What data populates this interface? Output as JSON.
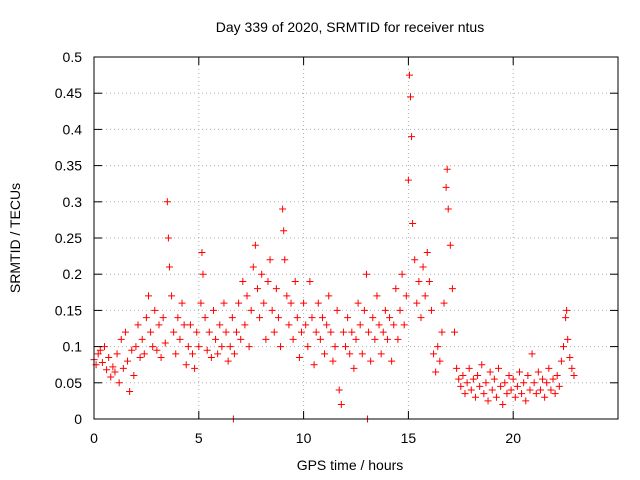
{
  "chart_data": {
    "type": "scatter",
    "title": "Day 339 of 2020, SRMTID for receiver ntus",
    "xlabel": "GPS time / hours",
    "ylabel": "SRMTID / TECUs",
    "xlim": [
      0,
      25
    ],
    "ylim": [
      0,
      0.5
    ],
    "xticks": [
      "0",
      "5",
      "10",
      "15",
      "20"
    ],
    "yticks": [
      "0",
      "0.05",
      "0.1",
      "0.15",
      "0.2",
      "0.25",
      "0.3",
      "0.35",
      "0.4",
      "0.45",
      "0.5"
    ],
    "grid": true,
    "marker": "plus",
    "color": "#ff0000",
    "series": [
      {
        "points": [
          [
            0.0,
            0.082
          ],
          [
            0.1,
            0.075
          ],
          [
            0.2,
            0.09
          ],
          [
            0.3,
            0.095
          ],
          [
            0.4,
            0.078
          ],
          [
            0.5,
            0.1
          ],
          [
            0.6,
            0.068
          ],
          [
            0.7,
            0.085
          ],
          [
            0.8,
            0.058
          ],
          [
            0.9,
            0.072
          ],
          [
            1.0,
            0.065
          ],
          [
            1.1,
            0.09
          ],
          [
            1.2,
            0.05
          ],
          [
            1.3,
            0.11
          ],
          [
            1.4,
            0.07
          ],
          [
            1.5,
            0.12
          ],
          [
            1.6,
            0.08
          ],
          [
            1.7,
            0.038
          ],
          [
            1.8,
            0.095
          ],
          [
            1.9,
            0.06
          ],
          [
            2.0,
            0.1
          ],
          [
            2.1,
            0.13
          ],
          [
            2.2,
            0.085
          ],
          [
            2.3,
            0.11
          ],
          [
            2.4,
            0.09
          ],
          [
            2.5,
            0.14
          ],
          [
            2.6,
            0.17
          ],
          [
            2.7,
            0.12
          ],
          [
            2.8,
            0.1
          ],
          [
            2.9,
            0.15
          ],
          [
            3.0,
            0.095
          ],
          [
            3.1,
            0.13
          ],
          [
            3.2,
            0.085
          ],
          [
            3.3,
            0.14
          ],
          [
            3.4,
            0.105
          ],
          [
            3.5,
            0.3
          ],
          [
            3.55,
            0.25
          ],
          [
            3.6,
            0.21
          ],
          [
            3.7,
            0.17
          ],
          [
            3.8,
            0.12
          ],
          [
            3.9,
            0.09
          ],
          [
            4.0,
            0.14
          ],
          [
            4.1,
            0.11
          ],
          [
            4.2,
            0.16
          ],
          [
            4.3,
            0.13
          ],
          [
            4.4,
            0.075
          ],
          [
            4.5,
            0.1
          ],
          [
            4.6,
            0.13
          ],
          [
            4.7,
            0.09
          ],
          [
            4.8,
            0.07
          ],
          [
            4.9,
            0.12
          ],
          [
            5.0,
            0.1
          ],
          [
            5.1,
            0.16
          ],
          [
            5.15,
            0.23
          ],
          [
            5.2,
            0.2
          ],
          [
            5.3,
            0.14
          ],
          [
            5.4,
            0.095
          ],
          [
            5.5,
            0.12
          ],
          [
            5.6,
            0.085
          ],
          [
            5.7,
            0.15
          ],
          [
            5.8,
            0.11
          ],
          [
            5.9,
            0.09
          ],
          [
            6.0,
            0.13
          ],
          [
            6.1,
            0.1
          ],
          [
            6.2,
            0.16
          ],
          [
            6.3,
            0.12
          ],
          [
            6.4,
            0.08
          ],
          [
            6.5,
            0.1
          ],
          [
            6.6,
            0.14
          ],
          [
            6.7,
            0.09
          ],
          [
            6.8,
            0.12
          ],
          [
            6.9,
            0.16
          ],
          [
            7.0,
            0.11
          ],
          [
            7.1,
            0.19
          ],
          [
            7.2,
            0.13
          ],
          [
            7.3,
            0.17
          ],
          [
            7.4,
            0.1
          ],
          [
            7.5,
            0.15
          ],
          [
            7.6,
            0.21
          ],
          [
            7.7,
            0.24
          ],
          [
            7.8,
            0.18
          ],
          [
            7.9,
            0.14
          ],
          [
            8.0,
            0.2
          ],
          [
            8.1,
            0.16
          ],
          [
            8.2,
            0.11
          ],
          [
            8.3,
            0.19
          ],
          [
            8.4,
            0.22
          ],
          [
            8.5,
            0.15
          ],
          [
            8.6,
            0.12
          ],
          [
            8.7,
            0.18
          ],
          [
            8.8,
            0.14
          ],
          [
            8.9,
            0.1
          ],
          [
            9.0,
            0.29
          ],
          [
            9.05,
            0.26
          ],
          [
            9.1,
            0.22
          ],
          [
            9.2,
            0.17
          ],
          [
            9.3,
            0.13
          ],
          [
            9.4,
            0.16
          ],
          [
            9.5,
            0.11
          ],
          [
            9.6,
            0.19
          ],
          [
            9.7,
            0.14
          ],
          [
            9.8,
            0.085
          ],
          [
            9.9,
            0.12
          ],
          [
            10.0,
            0.16
          ],
          [
            10.1,
            0.13
          ],
          [
            10.2,
            0.1
          ],
          [
            10.3,
            0.19
          ],
          [
            10.4,
            0.14
          ],
          [
            10.5,
            0.075
          ],
          [
            10.6,
            0.12
          ],
          [
            10.7,
            0.16
          ],
          [
            10.8,
            0.11
          ],
          [
            10.9,
            0.14
          ],
          [
            11.0,
            0.09
          ],
          [
            11.1,
            0.13
          ],
          [
            11.2,
            0.17
          ],
          [
            11.3,
            0.12
          ],
          [
            11.4,
            0.08
          ],
          [
            11.5,
            0.1
          ],
          [
            11.6,
            0.15
          ],
          [
            11.7,
            0.04
          ],
          [
            11.8,
            0.02
          ],
          [
            11.9,
            0.12
          ],
          [
            12.0,
            0.1
          ],
          [
            12.1,
            0.14
          ],
          [
            12.2,
            0.09
          ],
          [
            12.3,
            0.12
          ],
          [
            12.4,
            0.07
          ],
          [
            12.5,
            0.11
          ],
          [
            12.6,
            0.16
          ],
          [
            12.7,
            0.13
          ],
          [
            12.8,
            0.09
          ],
          [
            12.9,
            0.15
          ],
          [
            13.0,
            0.2
          ],
          [
            13.1,
            0.12
          ],
          [
            13.2,
            0.08
          ],
          [
            13.3,
            0.14
          ],
          [
            13.4,
            0.11
          ],
          [
            13.5,
            0.17
          ],
          [
            13.6,
            0.13
          ],
          [
            13.7,
            0.09
          ],
          [
            13.8,
            0.12
          ],
          [
            13.9,
            0.15
          ],
          [
            14.0,
            0.11
          ],
          [
            14.1,
            0.14
          ],
          [
            14.2,
            0.08
          ],
          [
            14.3,
            0.13
          ],
          [
            14.4,
            0.18
          ],
          [
            14.5,
            0.11
          ],
          [
            14.6,
            0.15
          ],
          [
            14.7,
            0.2
          ],
          [
            14.8,
            0.13
          ],
          [
            14.9,
            0.17
          ],
          [
            15.0,
            0.33
          ],
          [
            15.05,
            0.475
          ],
          [
            15.1,
            0.445
          ],
          [
            15.15,
            0.39
          ],
          [
            15.2,
            0.27
          ],
          [
            15.3,
            0.22
          ],
          [
            15.4,
            0.16
          ],
          [
            15.5,
            0.19
          ],
          [
            15.6,
            0.14
          ],
          [
            15.7,
            0.21
          ],
          [
            15.8,
            0.17
          ],
          [
            15.9,
            0.23
          ],
          [
            16.0,
            0.19
          ],
          [
            16.1,
            0.15
          ],
          [
            16.2,
            0.09
          ],
          [
            16.3,
            0.065
          ],
          [
            16.4,
            0.1
          ],
          [
            16.5,
            0.08
          ],
          [
            16.6,
            0.12
          ],
          [
            16.7,
            0.16
          ],
          [
            16.8,
            0.32
          ],
          [
            16.85,
            0.345
          ],
          [
            16.9,
            0.29
          ],
          [
            17.0,
            0.24
          ],
          [
            17.1,
            0.18
          ],
          [
            17.2,
            0.12
          ],
          [
            17.3,
            0.07
          ],
          [
            17.4,
            0.055
          ],
          [
            17.5,
            0.045
          ],
          [
            17.6,
            0.06
          ],
          [
            17.7,
            0.035
          ],
          [
            17.8,
            0.05
          ],
          [
            17.9,
            0.07
          ],
          [
            18.0,
            0.04
          ],
          [
            18.1,
            0.055
          ],
          [
            18.2,
            0.03
          ],
          [
            18.3,
            0.06
          ],
          [
            18.4,
            0.045
          ],
          [
            18.5,
            0.075
          ],
          [
            18.6,
            0.035
          ],
          [
            18.7,
            0.05
          ],
          [
            18.8,
            0.025
          ],
          [
            18.9,
            0.065
          ],
          [
            19.0,
            0.04
          ],
          [
            19.1,
            0.055
          ],
          [
            19.2,
            0.03
          ],
          [
            19.3,
            0.07
          ],
          [
            19.4,
            0.045
          ],
          [
            19.5,
            0.02
          ],
          [
            19.6,
            0.05
          ],
          [
            19.7,
            0.035
          ],
          [
            19.8,
            0.06
          ],
          [
            19.9,
            0.04
          ],
          [
            20.0,
            0.055
          ],
          [
            20.1,
            0.03
          ],
          [
            20.2,
            0.045
          ],
          [
            20.3,
            0.065
          ],
          [
            20.4,
            0.035
          ],
          [
            20.5,
            0.05
          ],
          [
            20.6,
            0.025
          ],
          [
            20.7,
            0.06
          ],
          [
            20.8,
            0.04
          ],
          [
            20.9,
            0.09
          ],
          [
            21.0,
            0.05
          ],
          [
            21.1,
            0.035
          ],
          [
            21.2,
            0.065
          ],
          [
            21.3,
            0.04
          ],
          [
            21.4,
            0.055
          ],
          [
            21.5,
            0.03
          ],
          [
            21.6,
            0.05
          ],
          [
            21.7,
            0.07
          ],
          [
            21.8,
            0.04
          ],
          [
            21.9,
            0.055
          ],
          [
            22.0,
            0.035
          ],
          [
            22.1,
            0.06
          ],
          [
            22.2,
            0.045
          ],
          [
            22.3,
            0.08
          ],
          [
            22.4,
            0.1
          ],
          [
            22.5,
            0.14
          ],
          [
            22.55,
            0.15
          ],
          [
            22.6,
            0.11
          ],
          [
            22.7,
            0.085
          ],
          [
            22.8,
            0.07
          ],
          [
            22.9,
            0.06
          ],
          [
            6.65,
            0.0
          ],
          [
            13.05,
            0.0
          ]
        ]
      }
    ]
  }
}
